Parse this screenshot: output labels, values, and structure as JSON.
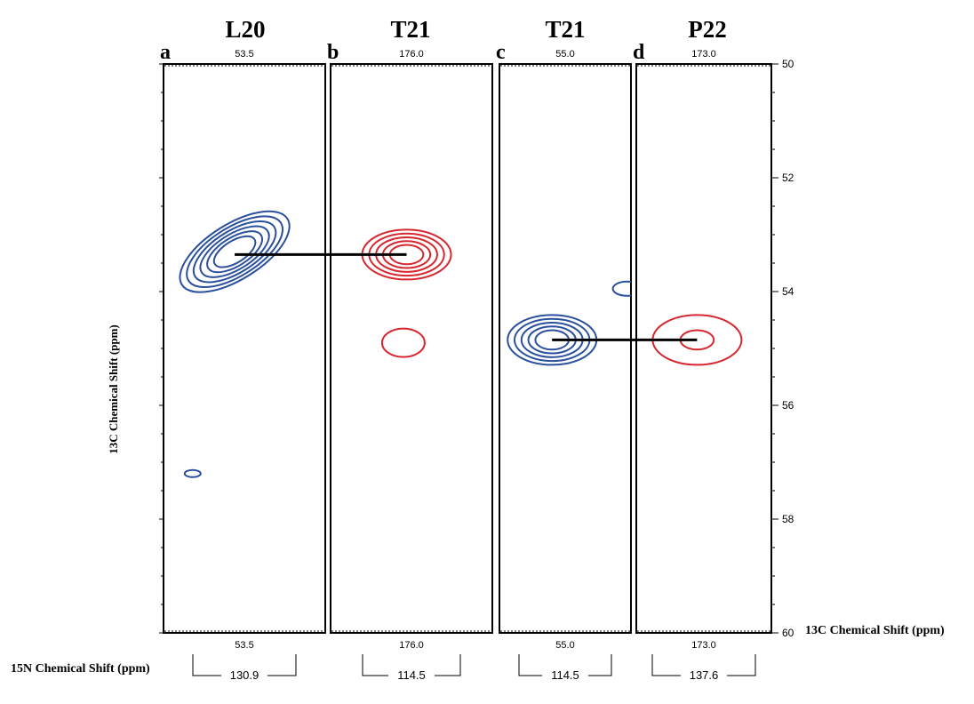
{
  "chart_data": {
    "type": "contour",
    "y_axis": {
      "label": "13C Chemical Shift (ppm)",
      "range": [
        50,
        60
      ],
      "inverted": true,
      "ticks": [
        "50",
        "52",
        "54",
        "56",
        "58",
        "60"
      ]
    },
    "x_axis": {
      "label": "13C Chemical Shift (ppm)",
      "label_nitrogen": "15N Chemical Shift (ppm)"
    },
    "panels": [
      {
        "letter": "a",
        "residue": "L20",
        "carbon_shift": "53.5",
        "nitrogen_shift": "130.9",
        "color": "#2a4f9c",
        "peaks": [
          {
            "x_rel": 0.44,
            "y_ppm": 53.3,
            "levels": 6,
            "elongated": true
          },
          {
            "x_rel": 0.18,
            "y_ppm": 57.2,
            "levels": 1
          }
        ]
      },
      {
        "letter": "b",
        "residue": "T21",
        "carbon_shift": "176.0",
        "nitrogen_shift": "114.5",
        "color": "#d7262e",
        "peaks": [
          {
            "x_rel": 0.47,
            "y_ppm": 53.35,
            "levels": 5
          },
          {
            "x_rel": 0.45,
            "y_ppm": 54.9,
            "levels": 1
          }
        ]
      },
      {
        "letter": "c",
        "residue": "T21",
        "carbon_shift": "55.0",
        "nitrogen_shift": "114.5",
        "color": "#2a4f9c",
        "peaks": [
          {
            "x_rel": 0.4,
            "y_ppm": 54.85,
            "levels": 5
          },
          {
            "x_rel": 0.97,
            "y_ppm": 53.95,
            "levels": 1,
            "partial": true
          }
        ]
      },
      {
        "letter": "d",
        "residue": "P22",
        "carbon_shift": "173.0",
        "nitrogen_shift": "137.6",
        "color": "#d7262e",
        "peaks": [
          {
            "x_rel": 0.45,
            "y_ppm": 54.85,
            "levels": 2
          }
        ]
      }
    ],
    "connections": [
      {
        "from_panel": "a",
        "to_panel": "b",
        "y_ppm": 53.35
      },
      {
        "from_panel": "c",
        "to_panel": "d",
        "y_ppm": 54.85
      }
    ]
  }
}
